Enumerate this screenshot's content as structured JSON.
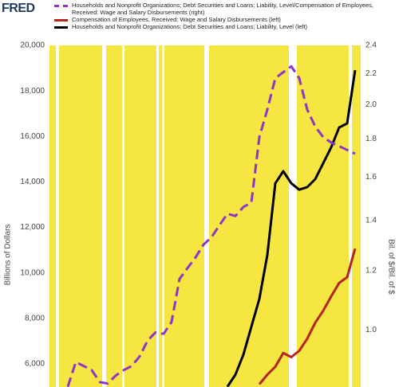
{
  "chart_data": {
    "type": "line",
    "logo": "FRED",
    "ylabel": "Billions of Dollars",
    "y2label": "Bil. of $/Bil. of $",
    "categories": [
      null,
      null,
      null,
      null,
      null,
      null,
      null,
      null,
      null,
      null,
      null,
      null,
      null,
      null,
      null,
      null,
      null,
      null,
      null,
      null,
      null,
      null,
      null,
      null,
      null,
      null,
      null,
      null,
      null,
      null,
      null,
      null,
      null,
      null,
      null,
      null,
      null,
      null,
      null
    ],
    "ylim": [
      5000,
      20000
    ],
    "yticks": [
      {
        "value": 6000,
        "label": "6,000"
      },
      {
        "value": 8000,
        "label": "8,000"
      },
      {
        "value": 10000,
        "label": "10,000"
      },
      {
        "value": 12000,
        "label": "12,000"
      },
      {
        "value": 14000,
        "label": "14,000"
      },
      {
        "value": 16000,
        "label": "16,000"
      },
      {
        "value": 18000,
        "label": "18,000"
      },
      {
        "value": 20000,
        "label": "20,000"
      }
    ],
    "y2lim": [
      0.84,
      2.4
    ],
    "y2log": true,
    "y2ticks": [
      {
        "value": 1,
        "label": "1.0"
      },
      1.2,
      1.4,
      1.6,
      1.8,
      {
        "value": 2,
        "label": "2.0"
      },
      2.2,
      2.4
    ],
    "series": [
      {
        "name": "Households and Nonprofit Organizations; Debt Securities and Loans; Liability, Level/Compensation of Employees, Received: Wage and Salary Disbursements (right)",
        "color": "#8e35c8",
        "dashed": true,
        "axis": "y2",
        "values": [
          null,
          null,
          0.84,
          0.906,
          0.895,
          0.884,
          0.852,
          0.848,
          0.869,
          0.884,
          0.895,
          0.922,
          0.968,
          0.993,
          0.988,
          1.025,
          1.17,
          1.21,
          1.25,
          1.3,
          1.33,
          1.38,
          1.43,
          1.42,
          1.46,
          1.48,
          1.81,
          1.97,
          2.17,
          2.21,
          2.25,
          2.17,
          1.97,
          1.87,
          1.81,
          1.78,
          1.76,
          1.74,
          1.72
        ]
      },
      {
        "name": "Compensation of Employees, Received: Wage and Salary Disbursements (left)",
        "color": "#b5231e",
        "values": [
          null,
          null,
          null,
          null,
          null,
          null,
          null,
          null,
          null,
          null,
          null,
          null,
          null,
          null,
          null,
          null,
          null,
          null,
          null,
          null,
          null,
          null,
          null,
          null,
          null,
          null,
          5110,
          5530,
          5880,
          6480,
          6300,
          6580,
          7110,
          7810,
          8340,
          8970,
          9560,
          9810,
          11070
        ]
      },
      {
        "name": "Households and Nonprofit Organizations; Debt Securities and Loans; Liability, Level (left)",
        "color": "#000000",
        "values": [
          null,
          null,
          null,
          null,
          null,
          null,
          null,
          null,
          null,
          null,
          null,
          null,
          null,
          null,
          null,
          null,
          null,
          null,
          null,
          null,
          null,
          null,
          5000,
          5530,
          6410,
          7640,
          8860,
          10790,
          13940,
          14470,
          13940,
          13660,
          13770,
          14120,
          14820,
          15520,
          16390,
          16570,
          18910
        ]
      }
    ]
  }
}
